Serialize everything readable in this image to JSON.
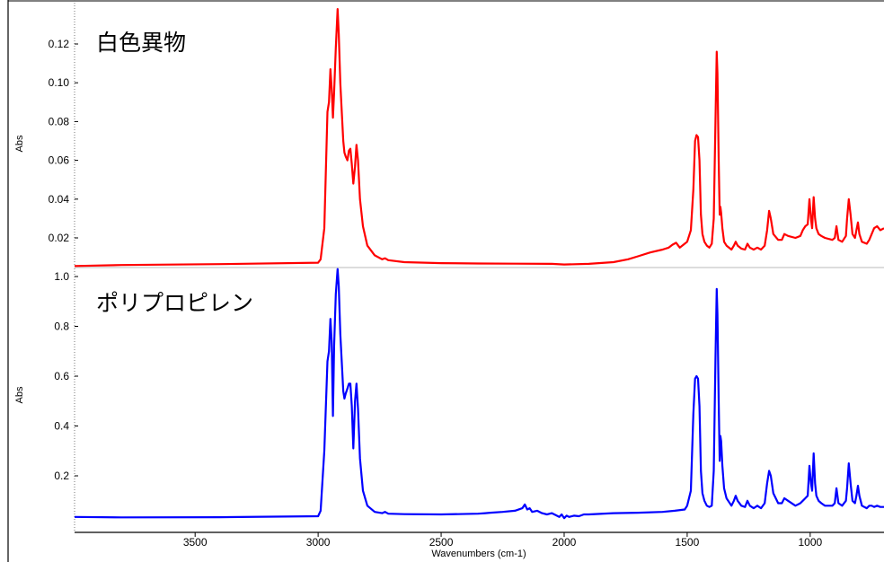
{
  "chart_data": {
    "type": "line",
    "xlabel": "Wavenumbers (cm-1)",
    "x_range": [
      3990,
      700
    ],
    "x_ticks": [
      3500,
      3000,
      2500,
      2000,
      1500,
      1000
    ],
    "colors": {
      "top": "#ff0000",
      "bottom": "#0000ff"
    },
    "grid": false,
    "panels": [
      {
        "title": "白色異物",
        "ylabel": "Abs",
        "ylim": [
          0.005,
          0.138
        ],
        "yticks": [
          0.02,
          0.04,
          0.06,
          0.08,
          0.1,
          0.12
        ],
        "ytick_labels": [
          "0.02",
          "0.04",
          "0.06",
          "0.08",
          "0.10",
          "0.12"
        ],
        "series": [
          {
            "color": "#ff0000",
            "x": [
              3990,
              3800,
              3400,
              3000,
              2990,
              2975,
              2962,
              2956,
              2950,
              2945,
              2940,
              2935,
              2928,
              2921,
              2916,
              2910,
              2905,
              2898,
              2893,
              2888,
              2881,
              2875,
              2869,
              2863,
              2857,
              2850,
              2844,
              2838,
              2830,
              2818,
              2800,
              2770,
              2740,
              2728,
              2715,
              2650,
              2500,
              2350,
              2200,
              2050,
              2000,
              1900,
              1800,
              1740,
              1700,
              1650,
              1600,
              1575,
              1560,
              1545,
              1530,
              1500,
              1485,
              1475,
              1468,
              1462,
              1456,
              1450,
              1444,
              1438,
              1430,
              1420,
              1410,
              1400,
              1392,
              1385,
              1380,
              1377,
              1372,
              1368,
              1365,
              1362,
              1357,
              1350,
              1340,
              1320,
              1310,
              1303,
              1295,
              1280,
              1265,
              1255,
              1245,
              1230,
              1215,
              1200,
              1185,
              1175,
              1167,
              1160,
              1150,
              1130,
              1115,
              1105,
              1090,
              1060,
              1040,
              1030,
              1020,
              1010,
              1003,
              997,
              992,
              986,
              980,
              975,
              966,
              955,
              940,
              910,
              900,
              893,
              885,
              870,
              855,
              850,
              843,
              836,
              828,
              818,
              812,
              806,
              800,
              790,
              770,
              760,
              750,
              740,
              728,
              715,
              700
            ],
            "y": [
              0.0055,
              0.006,
              0.0065,
              0.0072,
              0.009,
              0.025,
              0.085,
              0.09,
              0.107,
              0.097,
              0.082,
              0.095,
              0.118,
              0.138,
              0.125,
              0.1,
              0.088,
              0.07,
              0.064,
              0.062,
              0.06,
              0.065,
              0.066,
              0.058,
              0.048,
              0.057,
              0.068,
              0.06,
              0.04,
              0.026,
              0.016,
              0.011,
              0.009,
              0.0095,
              0.0085,
              0.0075,
              0.007,
              0.0068,
              0.0067,
              0.0066,
              0.0063,
              0.0066,
              0.0075,
              0.009,
              0.0105,
              0.0125,
              0.014,
              0.015,
              0.0165,
              0.0175,
              0.015,
              0.018,
              0.024,
              0.045,
              0.07,
              0.073,
              0.072,
              0.06,
              0.032,
              0.022,
              0.018,
              0.016,
              0.015,
              0.017,
              0.03,
              0.08,
              0.116,
              0.105,
              0.06,
              0.032,
              0.036,
              0.033,
              0.025,
              0.018,
              0.016,
              0.014,
              0.016,
              0.018,
              0.016,
              0.0145,
              0.014,
              0.017,
              0.015,
              0.014,
              0.015,
              0.014,
              0.016,
              0.024,
              0.034,
              0.03,
              0.022,
              0.019,
              0.019,
              0.022,
              0.021,
              0.02,
              0.021,
              0.024,
              0.026,
              0.027,
              0.04,
              0.03,
              0.025,
              0.041,
              0.03,
              0.025,
              0.022,
              0.021,
              0.02,
              0.019,
              0.02,
              0.026,
              0.019,
              0.018,
              0.021,
              0.03,
              0.04,
              0.032,
              0.022,
              0.02,
              0.024,
              0.028,
              0.022,
              0.018,
              0.017,
              0.019,
              0.022,
              0.025,
              0.026,
              0.024,
              0.025
            ]
          }
        ]
      },
      {
        "title": "ポリプロピレン",
        "ylabel": "Abs",
        "ylim": [
          0.015,
          1.03
        ],
        "yticks": [
          0.2,
          0.4,
          0.6,
          0.8,
          1.0
        ],
        "ytick_labels": [
          "0.2",
          "0.4",
          "0.6",
          "0.8",
          "1.0"
        ],
        "series": [
          {
            "color": "#0000ff",
            "x": [
              3990,
              3800,
              3400,
              3000,
              2990,
              2975,
              2962,
              2956,
              2950,
              2945,
              2940,
              2935,
              2928,
              2921,
              2916,
              2910,
              2905,
              2898,
              2893,
              2888,
              2881,
              2875,
              2869,
              2863,
              2857,
              2850,
              2844,
              2838,
              2830,
              2818,
              2800,
              2770,
              2740,
              2728,
              2715,
              2650,
              2500,
              2350,
              2320,
              2300,
              2250,
              2200,
              2170,
              2160,
              2150,
              2140,
              2130,
              2110,
              2090,
              2070,
              2050,
              2030,
              2020,
              2010,
              2000,
              1990,
              1980,
              1960,
              1940,
              1920,
              1900,
              1800,
              1700,
              1600,
              1550,
              1510,
              1500,
              1485,
              1475,
              1468,
              1462,
              1456,
              1450,
              1444,
              1438,
              1430,
              1420,
              1410,
              1400,
              1392,
              1385,
              1380,
              1377,
              1372,
              1368,
              1365,
              1362,
              1357,
              1350,
              1340,
              1320,
              1310,
              1303,
              1295,
              1280,
              1265,
              1255,
              1245,
              1230,
              1215,
              1200,
              1185,
              1175,
              1167,
              1160,
              1150,
              1130,
              1115,
              1105,
              1090,
              1060,
              1040,
              1030,
              1020,
              1010,
              1003,
              997,
              992,
              986,
              980,
              975,
              966,
              955,
              940,
              910,
              900,
              893,
              885,
              870,
              855,
              850,
              843,
              836,
              828,
              818,
              812,
              806,
              800,
              790,
              770,
              760,
              750,
              740,
              728,
              715,
              700
            ],
            "y": [
              0.035,
              0.033,
              0.034,
              0.038,
              0.06,
              0.3,
              0.66,
              0.7,
              0.83,
              0.74,
              0.44,
              0.72,
              0.93,
              1.03,
              0.96,
              0.77,
              0.68,
              0.54,
              0.51,
              0.53,
              0.55,
              0.57,
              0.57,
              0.48,
              0.31,
              0.5,
              0.57,
              0.47,
              0.27,
              0.14,
              0.08,
              0.055,
              0.05,
              0.055,
              0.048,
              0.046,
              0.045,
              0.048,
              0.05,
              0.052,
              0.055,
              0.06,
              0.07,
              0.085,
              0.065,
              0.07,
              0.055,
              0.06,
              0.05,
              0.045,
              0.05,
              0.04,
              0.035,
              0.045,
              0.03,
              0.04,
              0.035,
              0.04,
              0.038,
              0.045,
              0.045,
              0.05,
              0.052,
              0.055,
              0.06,
              0.065,
              0.08,
              0.14,
              0.45,
              0.59,
              0.6,
              0.59,
              0.48,
              0.22,
              0.13,
              0.1,
              0.08,
              0.075,
              0.08,
              0.22,
              0.67,
              0.95,
              0.85,
              0.5,
              0.26,
              0.36,
              0.34,
              0.24,
              0.15,
              0.11,
              0.08,
              0.1,
              0.12,
              0.1,
              0.08,
              0.075,
              0.1,
              0.08,
              0.07,
              0.08,
              0.07,
              0.09,
              0.17,
              0.22,
              0.2,
              0.13,
              0.09,
              0.09,
              0.11,
              0.1,
              0.08,
              0.09,
              0.1,
              0.11,
              0.12,
              0.24,
              0.17,
              0.14,
              0.29,
              0.17,
              0.12,
              0.1,
              0.09,
              0.08,
              0.08,
              0.09,
              0.15,
              0.09,
              0.08,
              0.1,
              0.15,
              0.25,
              0.17,
              0.1,
              0.09,
              0.12,
              0.16,
              0.12,
              0.08,
              0.07,
              0.08,
              0.08,
              0.075,
              0.08,
              0.075,
              0.075
            ]
          }
        ]
      }
    ]
  }
}
